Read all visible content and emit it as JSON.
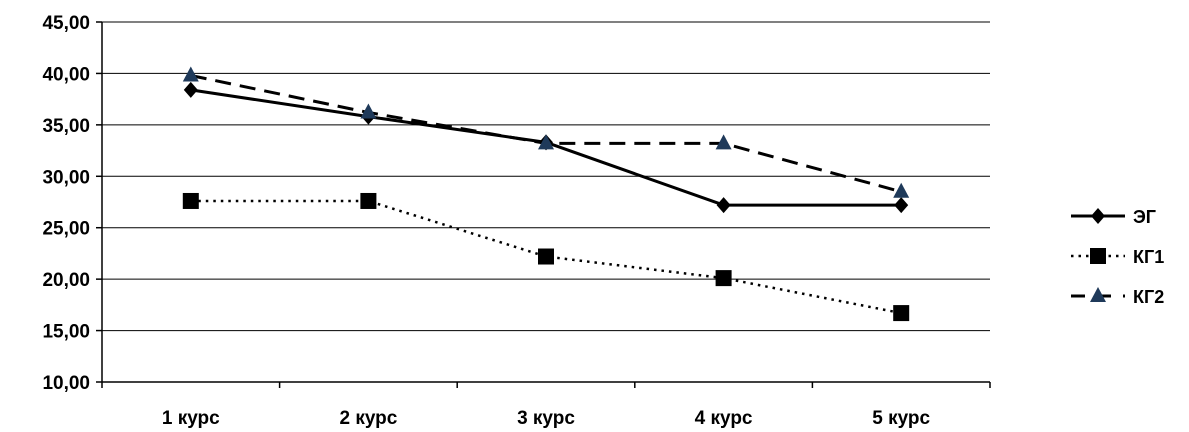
{
  "chart_data": {
    "type": "line",
    "categories": [
      "1 курс",
      "2 курс",
      "3 курс",
      "4 курс",
      "5 курс"
    ],
    "ylim": [
      10,
      45
    ],
    "yticks": [
      "10,00",
      "15,00",
      "20,00",
      "25,00",
      "30,00",
      "35,00",
      "40,00",
      "45,00"
    ],
    "ytick_values": [
      10,
      15,
      20,
      25,
      30,
      35,
      40,
      45
    ],
    "grid": true,
    "legend_position": "right",
    "series": [
      {
        "name": "ЭГ",
        "values": [
          38.4,
          35.8,
          33.3,
          27.2,
          27.2
        ],
        "line_style": "solid",
        "marker": "diamond",
        "color": "#000000"
      },
      {
        "name": "КГ1",
        "values": [
          27.6,
          27.6,
          22.2,
          20.1,
          16.7
        ],
        "line_style": "dotted",
        "marker": "square",
        "color": "#000000"
      },
      {
        "name": "КГ2",
        "values": [
          39.8,
          36.2,
          33.2,
          33.2,
          28.5
        ],
        "line_style": "dashed",
        "marker": "triangle",
        "color": "#000000",
        "marker_color": "#1f3a5a"
      }
    ]
  }
}
